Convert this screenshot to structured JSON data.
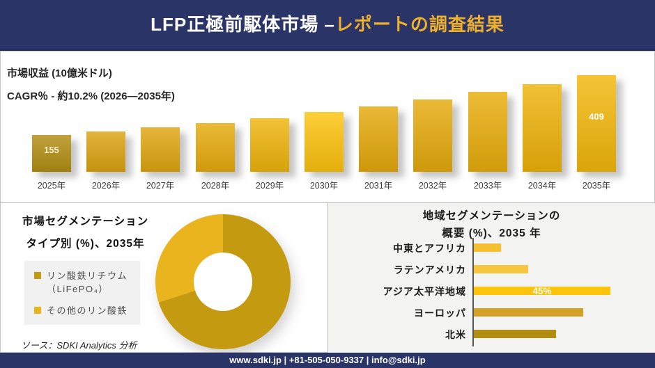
{
  "header": {
    "title_white": "LFP正極前駆体市場 –",
    "title_gold": "レポートの調査結果",
    "bg_color": "#2A3467",
    "accent_color": "#EFB02B"
  },
  "revenue_chart": {
    "metric_label": "市場収益 (10億米ドル)",
    "cagr_label": "CAGR％ - 約10.2% (2026―2035年)",
    "max_value": 409,
    "bars": [
      {
        "year": "2025年",
        "value": 155,
        "color": "#B28E12",
        "show_label": true
      },
      {
        "year": "2026年",
        "value": 171,
        "color": "#DCA311",
        "show_label": false
      },
      {
        "year": "2027年",
        "value": 188,
        "color": "#DFA60F",
        "show_label": false
      },
      {
        "year": "2028年",
        "value": 207,
        "color": "#E6AB0C",
        "show_label": false
      },
      {
        "year": "2029年",
        "value": 228,
        "color": "#EFB40B",
        "show_label": false
      },
      {
        "year": "2030年",
        "value": 252,
        "color": "#FDC30D",
        "show_label": false
      },
      {
        "year": "2031年",
        "value": 277,
        "color": "#E5A90A",
        "show_label": false
      },
      {
        "year": "2032年",
        "value": 306,
        "color": "#E6AA0B",
        "show_label": false
      },
      {
        "year": "2033年",
        "value": 337,
        "color": "#E9AD0A",
        "show_label": false
      },
      {
        "year": "2034年",
        "value": 371,
        "color": "#EEB209",
        "show_label": false
      },
      {
        "year": "2035年",
        "value": 409,
        "color": "#F3B80B",
        "show_label": true
      }
    ]
  },
  "type_segmentation": {
    "title_line1": "市場セグメンテーション",
    "title_line2": "タイプ別 (%)、2035年",
    "segments": [
      {
        "label_line1": "リン酸鉄リチウム",
        "label_line2": "（LiFePO₄）",
        "value": 70,
        "color": "#C49A11"
      },
      {
        "label_line1": "その他のリン酸鉄",
        "label_line2": "",
        "value": 30,
        "color": "#E9B41E"
      }
    ],
    "source": "ソース：SDKI Analytics 分析"
  },
  "region_segmentation": {
    "title_line1": "地域セグメンテーションの",
    "title_line2": "概要 (%)、2035 年",
    "bars": [
      {
        "label": "中東とアフリカ",
        "value": 9,
        "color": "#F4BF31",
        "data_label": ""
      },
      {
        "label": "ラテンアメリカ",
        "value": 18,
        "color": "#F7C63E",
        "data_label": ""
      },
      {
        "label": "アジア太平洋地域",
        "value": 45,
        "color": "#FDC40E",
        "data_label": "45%"
      },
      {
        "label": "ヨーロッパ",
        "value": 36,
        "color": "#D2A125",
        "data_label": ""
      },
      {
        "label": "北米",
        "value": 27,
        "color": "#B18E12",
        "data_label": ""
      }
    ]
  },
  "footer": {
    "text": "www.sdki.jp | +81-505-050-9337 | info@sdki.jp"
  },
  "chart_data": [
    {
      "type": "bar",
      "title": "市場収益 (10億米ドル)",
      "subtitle": "CAGR％ - 約10.2% (2026―2035年)",
      "categories": [
        "2025年",
        "2026年",
        "2027年",
        "2028年",
        "2029年",
        "2030年",
        "2031年",
        "2032年",
        "2033年",
        "2034年",
        "2035年"
      ],
      "values": [
        155,
        171,
        188,
        207,
        228,
        252,
        277,
        306,
        337,
        371,
        409
      ],
      "labeled_points": {
        "2025年": 155,
        "2035年": 409
      },
      "xlabel": "",
      "ylabel": "市場収益 (10億米ドル)",
      "ylim": [
        0,
        430
      ],
      "grid": false,
      "legend": false
    },
    {
      "type": "pie",
      "donut": true,
      "title": "市場セグメンテーション タイプ別 (%)、2035年",
      "labels": [
        "リン酸鉄リチウム（LiFePO₄）",
        "その他のリン酸鉄"
      ],
      "values": [
        70,
        30
      ],
      "colors": [
        "#C49A11",
        "#E9B41E"
      ],
      "legend_position": "left"
    },
    {
      "type": "bar",
      "orientation": "horizontal",
      "title": "地域セグメンテーションの概要 (%)、2035 年",
      "categories": [
        "中東とアフリカ",
        "ラテンアメリカ",
        "アジア太平洋地域",
        "ヨーロッパ",
        "北米"
      ],
      "values": [
        9,
        18,
        45,
        36,
        27
      ],
      "labeled_points": {
        "アジア太平洋地域": "45%"
      },
      "xlim": [
        0,
        50
      ],
      "grid": false,
      "legend": false
    }
  ]
}
